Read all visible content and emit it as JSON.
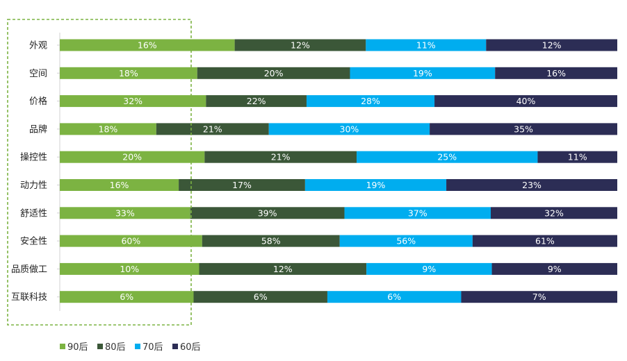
{
  "chart_data": {
    "type": "bar",
    "orientation": "horizontal",
    "stacked": true,
    "categories": [
      "外观",
      "空间",
      "价格",
      "品牌",
      "操控性",
      "动力性",
      "舒适性",
      "安全性",
      "品质做工",
      "互联科技"
    ],
    "series": [
      {
        "name": "90后",
        "color": "#7cb342",
        "values": [
          16,
          18,
          32,
          18,
          20,
          16,
          33,
          60,
          10,
          6
        ]
      },
      {
        "name": "80后",
        "color": "#3b5738",
        "values": [
          12,
          20,
          22,
          21,
          21,
          17,
          39,
          58,
          12,
          6
        ]
      },
      {
        "name": "70后",
        "color": "#00adef",
        "values": [
          11,
          19,
          28,
          30,
          25,
          19,
          37,
          56,
          9,
          6
        ]
      },
      {
        "name": "60后",
        "color": "#2c2d55",
        "values": [
          12,
          16,
          40,
          35,
          11,
          23,
          32,
          61,
          9,
          7
        ]
      }
    ],
    "value_suffix": "%",
    "legend_position": "bottom-left",
    "highlight_box_color": "#7cb342"
  }
}
